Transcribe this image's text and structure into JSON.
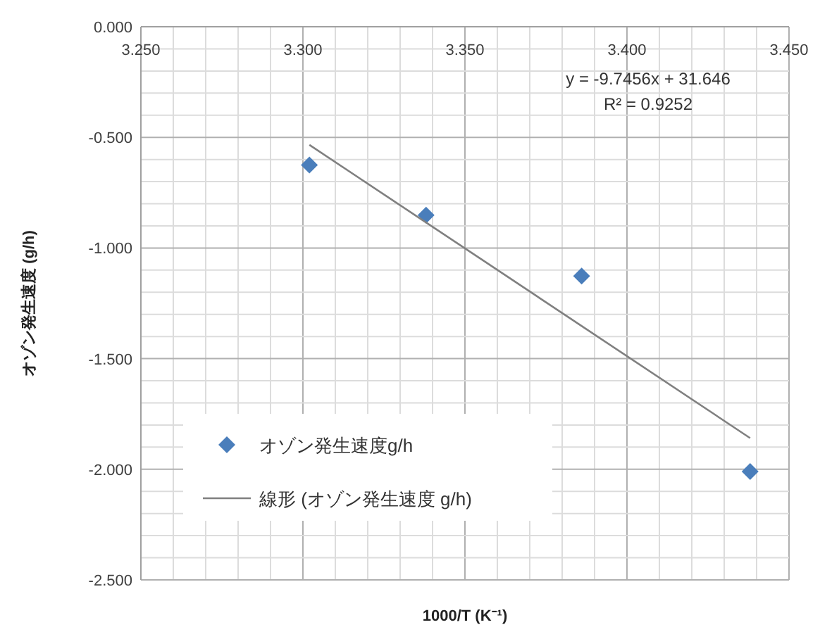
{
  "chart_data": {
    "type": "scatter",
    "xlabel": "1000/T (K⁻¹)",
    "ylabel": "オゾン発生速度 (g/h)",
    "x": [
      3.302,
      3.338,
      3.386,
      3.438
    ],
    "series": [
      {
        "name": "オゾン発生速度g/h",
        "type": "scatter",
        "color": "#4a7ebb",
        "marker": "diamond",
        "values": [
          -0.625,
          -0.852,
          -1.127,
          -2.01
        ]
      },
      {
        "name": "線形 (オゾン発生速度 g/h)",
        "type": "line",
        "color": "#808080",
        "marker": "none",
        "x": [
          3.302,
          3.438
        ],
        "values": [
          -0.534,
          -1.859
        ]
      }
    ],
    "xlim": [
      3.25,
      3.45
    ],
    "xticks": [
      {
        "value": 3.25,
        "label": "3.250"
      },
      {
        "value": 3.3,
        "label": "3.300"
      },
      {
        "value": 3.35,
        "label": "3.350"
      },
      {
        "value": 3.4,
        "label": "3.400"
      },
      {
        "value": 3.45,
        "label": "3.450"
      }
    ],
    "ylim": [
      -2.5,
      0
    ],
    "yticks": [
      {
        "value": 0,
        "label": "0.000"
      },
      {
        "value": -0.5,
        "label": "-0.500"
      },
      {
        "value": -1,
        "label": "-1.000"
      },
      {
        "value": -1.5,
        "label": "-1.500"
      },
      {
        "value": -2,
        "label": "-2.000"
      },
      {
        "value": -2.5,
        "label": "-2.500"
      }
    ],
    "annotations": [
      "y = -9.7456x + 31.646",
      "R² = 0.9252"
    ],
    "grid": true,
    "legend": "bottom left"
  }
}
